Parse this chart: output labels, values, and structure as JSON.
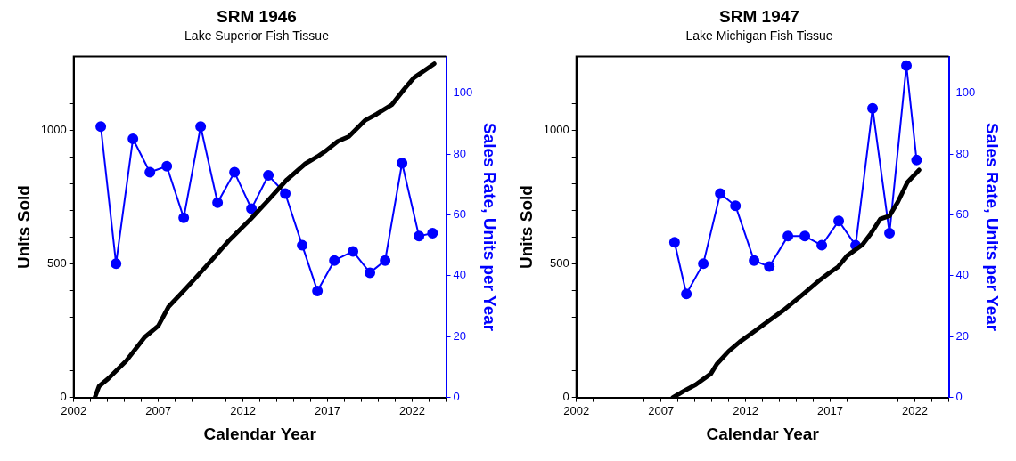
{
  "chart_data": [
    {
      "type": "line",
      "title": "SRM 1946",
      "subtitle": "Lake Superior Fish Tissue",
      "xlabel": "Calendar Year",
      "ylabel": "Units Sold",
      "y2label": "Sales Rate, Units per Year",
      "xlim": [
        2002,
        2024
      ],
      "ylim": [
        0,
        1275
      ],
      "y2lim": [
        0,
        112
      ],
      "xticks": [
        2002,
        {
          "value": 2003,
          "label": null
        },
        {
          "value": 2004,
          "label": null
        },
        {
          "value": 2005,
          "label": null
        },
        {
          "value": 2006,
          "label": null
        },
        2007,
        {
          "value": 2008,
          "label": null
        },
        {
          "value": 2009,
          "label": null
        },
        {
          "value": 2010,
          "label": null
        },
        {
          "value": 2011,
          "label": null
        },
        2012,
        {
          "value": 2013,
          "label": null
        },
        {
          "value": 2014,
          "label": null
        },
        {
          "value": 2015,
          "label": null
        },
        {
          "value": 2016,
          "label": null
        },
        2017,
        {
          "value": 2018,
          "label": null
        },
        {
          "value": 2019,
          "label": null
        },
        {
          "value": 2020,
          "label": null
        },
        {
          "value": 2021,
          "label": null
        },
        2022,
        {
          "value": 2023,
          "label": null
        },
        {
          "value": 2024,
          "label": null
        }
      ],
      "yticks": [
        0,
        {
          "value": 100,
          "label": null
        },
        {
          "value": 200,
          "label": null
        },
        {
          "value": 300,
          "label": null
        },
        {
          "value": 400,
          "label": null
        },
        500,
        {
          "value": 600,
          "label": null
        },
        {
          "value": 700,
          "label": null
        },
        {
          "value": 800,
          "label": null
        },
        {
          "value": 900,
          "label": null
        },
        1000,
        {
          "value": 1100,
          "label": null
        },
        {
          "value": 1200,
          "label": null
        }
      ],
      "y2ticks": [
        0,
        20,
        40,
        60,
        80,
        100
      ],
      "grid": false,
      "legend": false,
      "series": [
        {
          "color": "#000000",
          "marker": "none",
          "x": [
            2003.25,
            2003.5,
            2004.05,
            2005.1,
            2006.2,
            2007,
            2007.6,
            2008.5,
            2009.1,
            2010.3,
            2011.2,
            2012.45,
            2013.5,
            2014.6,
            2015.7,
            2016.4,
            2016.9,
            2017.6,
            2018.25,
            2019.2,
            2019.9,
            2020.8,
            2021.55,
            2022.1,
            2023.3
          ],
          "values": [
            0,
            42,
            71,
            137,
            226,
            268,
            339,
            399,
            440,
            524,
            589,
            667,
            738,
            815,
            875,
            901,
            923,
            958,
            976,
            1036,
            1060,
            1095,
            1155,
            1196,
            1248
          ]
        },
        {
          "color": "#0000ff",
          "marker": "circle",
          "axis": "y2",
          "x": [
            2003.6,
            2004.5,
            2005.5,
            2006.5,
            2007.5,
            2008.5,
            2009.5,
            2010.5,
            2011.5,
            2012.5,
            2013.5,
            2014.5,
            2015.5,
            2016.4,
            2017.4,
            2018.5,
            2019.5,
            2020.4,
            2021.4,
            2022.4,
            2023.2
          ],
          "values": [
            89,
            44,
            85,
            74,
            76,
            59,
            89,
            64,
            74,
            62,
            73,
            67,
            50,
            35,
            45,
            48,
            41,
            45,
            77,
            53,
            54
          ]
        }
      ]
    },
    {
      "type": "line",
      "title": "SRM 1947",
      "subtitle": "Lake Michigan Fish Tissue",
      "xlabel": "Calendar Year",
      "ylabel": "Units Sold",
      "y2label": "Sales Rate, Units per Year",
      "xlim": [
        2002,
        2024
      ],
      "ylim": [
        0,
        1275
      ],
      "y2lim": [
        0,
        112
      ],
      "xticks": [
        2002,
        {
          "value": 2003,
          "label": null
        },
        {
          "value": 2004,
          "label": null
        },
        {
          "value": 2005,
          "label": null
        },
        {
          "value": 2006,
          "label": null
        },
        2007,
        {
          "value": 2008,
          "label": null
        },
        {
          "value": 2009,
          "label": null
        },
        {
          "value": 2010,
          "label": null
        },
        {
          "value": 2011,
          "label": null
        },
        2012,
        {
          "value": 2013,
          "label": null
        },
        {
          "value": 2014,
          "label": null
        },
        {
          "value": 2015,
          "label": null
        },
        {
          "value": 2016,
          "label": null
        },
        2017,
        {
          "value": 2018,
          "label": null
        },
        {
          "value": 2019,
          "label": null
        },
        {
          "value": 2020,
          "label": null
        },
        {
          "value": 2021,
          "label": null
        },
        2022,
        {
          "value": 2023,
          "label": null
        },
        {
          "value": 2024,
          "label": null
        }
      ],
      "yticks": [
        0,
        {
          "value": 100,
          "label": null
        },
        {
          "value": 200,
          "label": null
        },
        {
          "value": 300,
          "label": null
        },
        {
          "value": 400,
          "label": null
        },
        500,
        {
          "value": 600,
          "label": null
        },
        {
          "value": 700,
          "label": null
        },
        {
          "value": 800,
          "label": null
        },
        {
          "value": 900,
          "label": null
        },
        1000,
        {
          "value": 1100,
          "label": null
        },
        {
          "value": 1200,
          "label": null
        }
      ],
      "y2ticks": [
        0,
        20,
        40,
        60,
        80,
        100
      ],
      "grid": false,
      "legend": false,
      "series": [
        {
          "color": "#000000",
          "marker": "none",
          "x": [
            2007.7,
            2008.35,
            2009.05,
            2009.95,
            2010.3,
            2011,
            2011.65,
            2012.45,
            2013.35,
            2014.25,
            2015.3,
            2016.4,
            2016.9,
            2017.45,
            2018,
            2018.9,
            2019.4,
            2019.95,
            2020.5,
            2021,
            2021.55,
            2022.25
          ],
          "values": [
            0,
            24,
            48,
            89,
            125,
            173,
            208,
            244,
            286,
            327,
            381,
            440,
            464,
            488,
            530,
            571,
            613,
            667,
            679,
            732,
            804,
            851
          ]
        },
        {
          "color": "#0000ff",
          "marker": "circle",
          "axis": "y2",
          "x": [
            2007.8,
            2008.5,
            2009.5,
            2010.5,
            2011.4,
            2012.5,
            2013.4,
            2014.5,
            2015.5,
            2016.5,
            2017.5,
            2018.5,
            2019.5,
            2020.5,
            2021.5,
            2022.1
          ],
          "values": [
            51,
            34,
            44,
            67,
            63,
            45,
            43,
            53,
            53,
            50,
            58,
            50,
            95,
            54,
            109,
            78
          ]
        }
      ]
    }
  ]
}
